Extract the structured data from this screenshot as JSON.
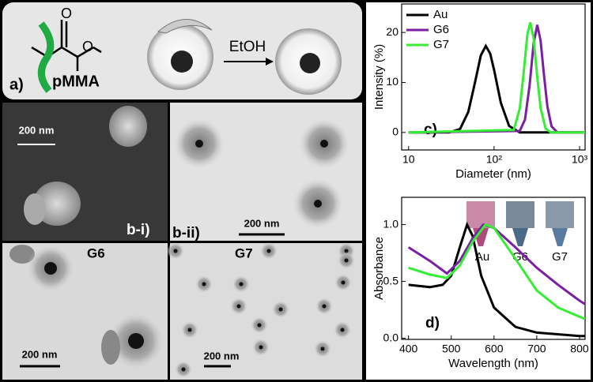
{
  "panels": {
    "a_label": "a)",
    "polymer": "pMMA",
    "solvent": "EtOH",
    "bi_label": "b-i)",
    "bii_label": "b-ii)",
    "g6_label": "G6",
    "g7_label": "G7",
    "scale_bars": [
      "200 nm",
      "200 nm",
      "200 nm",
      "200 nm"
    ],
    "inset_labels": [
      "Au",
      "G6",
      "G7"
    ]
  },
  "chart_data": [
    {
      "type": "line",
      "panel_label": "c)",
      "x_label": "Diameter (nm)",
      "y_label": "Intensity (%)",
      "xscale": "log",
      "xlim": [
        8.3,
        1160
      ],
      "ylim": [
        -3.5,
        25.7
      ],
      "xticks": [
        10,
        {
          "value": 100,
          "label": "10²"
        },
        {
          "value": 1000,
          "label": "10³"
        }
      ],
      "yticks": [
        0,
        10,
        20
      ],
      "legend": "upper left",
      "series": [
        {
          "name": "Au",
          "color": "#000000",
          "x": [
            10,
            30,
            40,
            50,
            60,
            70,
            80,
            90,
            100,
            120,
            150,
            200,
            300,
            1160
          ],
          "values": [
            0,
            0,
            0.7,
            4.1,
            10.1,
            15.4,
            17.3,
            15.8,
            12.5,
            5.9,
            1.3,
            0,
            0,
            0
          ]
        },
        {
          "name": "G6",
          "color": "#7b1fa2",
          "x": [
            10,
            200,
            230,
            260,
            290,
            320,
            350,
            380,
            420,
            470,
            550,
            1160
          ],
          "values": [
            0,
            0.3,
            2.6,
            9.4,
            17.8,
            21.5,
            18.4,
            12.1,
            5.2,
            1.2,
            0,
            0
          ]
        },
        {
          "name": "G7",
          "color": "#33ee33",
          "x": [
            10,
            170,
            200,
            220,
            245,
            265,
            290,
            320,
            350,
            400,
            460,
            1160
          ],
          "values": [
            0,
            0.5,
            4.8,
            11.3,
            19.6,
            22,
            18.8,
            11.1,
            4.9,
            0.8,
            0,
            0
          ]
        }
      ]
    },
    {
      "type": "line",
      "panel_label": "d)",
      "x_label": "Wavelength (nm)",
      "y_label": "Absorbance",
      "xscale": "linear",
      "xlim": [
        384,
        813
      ],
      "ylim": [
        -0.01,
        1.24
      ],
      "xticks": [
        400,
        500,
        600,
        700,
        800
      ],
      "yticks": [
        {
          "value": 0,
          "label": "0.0"
        },
        {
          "value": 0.5,
          "label": "0.5"
        },
        {
          "value": 1,
          "label": "1.0"
        }
      ],
      "series": [
        {
          "name": "Au",
          "color": "#000000",
          "x": [
            400,
            450,
            480,
            500,
            520,
            537,
            550,
            570,
            600,
            650,
            700,
            800,
            813
          ],
          "values": [
            0.47,
            0.45,
            0.47,
            0.55,
            0.8,
            1.0,
            0.9,
            0.55,
            0.27,
            0.1,
            0.05,
            0.02,
            0.02
          ]
        },
        {
          "name": "G6",
          "color": "#7b1fa2",
          "x": [
            400,
            450,
            490,
            520,
            550,
            575,
            600,
            650,
            700,
            750,
            800,
            813
          ],
          "values": [
            0.8,
            0.68,
            0.57,
            0.68,
            0.88,
            1.0,
            0.97,
            0.8,
            0.62,
            0.47,
            0.33,
            0.3
          ]
        },
        {
          "name": "G7",
          "color": "#33ee33",
          "x": [
            400,
            450,
            490,
            520,
            550,
            580,
            600,
            650,
            700,
            750,
            800,
            813
          ],
          "values": [
            0.62,
            0.56,
            0.53,
            0.64,
            0.85,
            1.0,
            0.97,
            0.7,
            0.42,
            0.27,
            0.19,
            0.17
          ]
        }
      ]
    }
  ]
}
